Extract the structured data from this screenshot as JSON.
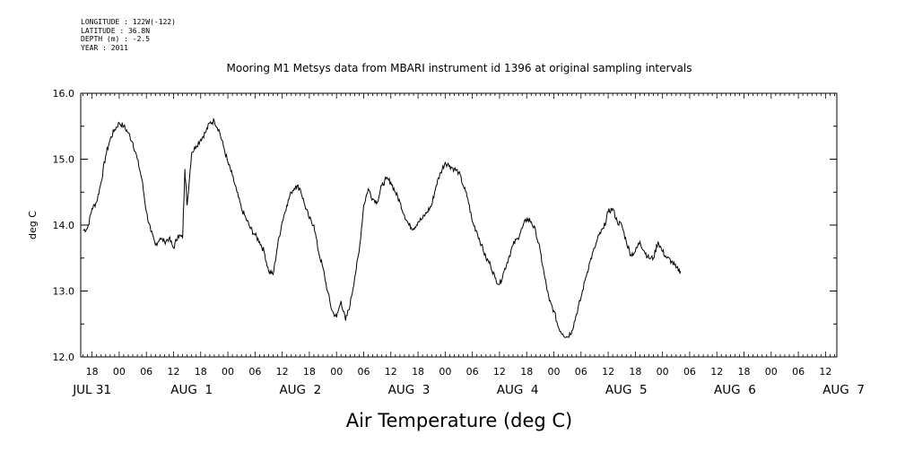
{
  "metadata": {
    "longitude": "LONGITUDE : 122W(-122)",
    "latitude": "LATITUDE : 36.8N",
    "depth": "DEPTH (m) : -2.5",
    "year": "YEAR : 2011"
  },
  "chart_data": {
    "type": "line",
    "title": "Mooring M1 Metsys data from MBARI instrument id 1396 at original sampling intervals",
    "xlabel": "Air Temperature (deg C)",
    "ylabel": "deg C",
    "ylim": [
      12.0,
      16.0
    ],
    "yticks": [
      "16.0",
      "15.0",
      "14.0",
      "13.0",
      "12.0"
    ],
    "x_units": "hours since 2011-07-31 00:00",
    "xlim": [
      15.5,
      182.5
    ],
    "hour_ticks": [
      {
        "h": 18,
        "label": "18"
      },
      {
        "h": 24,
        "label": "00"
      },
      {
        "h": 30,
        "label": "06"
      },
      {
        "h": 36,
        "label": "12"
      },
      {
        "h": 42,
        "label": "18"
      },
      {
        "h": 48,
        "label": "00"
      },
      {
        "h": 54,
        "label": "06"
      },
      {
        "h": 60,
        "label": "12"
      },
      {
        "h": 66,
        "label": "18"
      },
      {
        "h": 72,
        "label": "00"
      },
      {
        "h": 78,
        "label": "06"
      },
      {
        "h": 84,
        "label": "12"
      },
      {
        "h": 90,
        "label": "18"
      },
      {
        "h": 96,
        "label": "00"
      },
      {
        "h": 102,
        "label": "06"
      },
      {
        "h": 108,
        "label": "12"
      },
      {
        "h": 114,
        "label": "18"
      },
      {
        "h": 120,
        "label": "00"
      },
      {
        "h": 126,
        "label": "06"
      },
      {
        "h": 132,
        "label": "12"
      },
      {
        "h": 138,
        "label": "18"
      },
      {
        "h": 144,
        "label": "00"
      },
      {
        "h": 150,
        "label": "06"
      },
      {
        "h": 156,
        "label": "12"
      },
      {
        "h": 162,
        "label": "18"
      },
      {
        "h": 168,
        "label": "00"
      },
      {
        "h": 174,
        "label": "06"
      },
      {
        "h": 180,
        "label": "12"
      }
    ],
    "date_labels": [
      {
        "h": 18,
        "label": "JUL 31"
      },
      {
        "h": 40,
        "label": "AUG  1"
      },
      {
        "h": 64,
        "label": "AUG  2"
      },
      {
        "h": 88,
        "label": "AUG  3"
      },
      {
        "h": 112,
        "label": "AUG  4"
      },
      {
        "h": 136,
        "label": "AUG  5"
      },
      {
        "h": 160,
        "label": "AUG  6"
      },
      {
        "h": 184,
        "label": "AUG  7"
      }
    ],
    "series": [
      {
        "color": "#000000",
        "points": [
          [
            16.0,
            13.92
          ],
          [
            17.0,
            13.95
          ],
          [
            18.0,
            14.25
          ],
          [
            19.0,
            14.35
          ],
          [
            20.0,
            14.65
          ],
          [
            21.0,
            15.05
          ],
          [
            22.0,
            15.3
          ],
          [
            23.0,
            15.45
          ],
          [
            24.0,
            15.55
          ],
          [
            25.0,
            15.5
          ],
          [
            26.0,
            15.4
          ],
          [
            27.0,
            15.25
          ],
          [
            28.0,
            15.0
          ],
          [
            29.0,
            14.7
          ],
          [
            30.0,
            14.2
          ],
          [
            31.0,
            13.9
          ],
          [
            32.0,
            13.7
          ],
          [
            33.0,
            13.8
          ],
          [
            34.0,
            13.75
          ],
          [
            35.0,
            13.8
          ],
          [
            36.0,
            13.65
          ],
          [
            37.0,
            13.85
          ],
          [
            38.0,
            13.8
          ],
          [
            38.5,
            14.85
          ],
          [
            39.0,
            14.3
          ],
          [
            40.0,
            15.1
          ],
          [
            41.0,
            15.2
          ],
          [
            42.0,
            15.3
          ],
          [
            43.0,
            15.4
          ],
          [
            44.0,
            15.55
          ],
          [
            45.0,
            15.58
          ],
          [
            46.0,
            15.45
          ],
          [
            47.0,
            15.2
          ],
          [
            48.0,
            14.95
          ],
          [
            49.0,
            14.75
          ],
          [
            50.0,
            14.5
          ],
          [
            51.0,
            14.25
          ],
          [
            52.0,
            14.1
          ],
          [
            53.0,
            13.95
          ],
          [
            54.0,
            13.85
          ],
          [
            55.0,
            13.75
          ],
          [
            56.0,
            13.6
          ],
          [
            57.0,
            13.3
          ],
          [
            58.0,
            13.25
          ],
          [
            59.0,
            13.7
          ],
          [
            60.0,
            14.05
          ],
          [
            61.0,
            14.3
          ],
          [
            62.0,
            14.5
          ],
          [
            63.0,
            14.6
          ],
          [
            64.0,
            14.55
          ],
          [
            65.0,
            14.3
          ],
          [
            66.0,
            14.1
          ],
          [
            67.0,
            14.0
          ],
          [
            68.0,
            13.6
          ],
          [
            69.0,
            13.35
          ],
          [
            70.0,
            13.0
          ],
          [
            71.0,
            12.7
          ],
          [
            72.0,
            12.6
          ],
          [
            73.0,
            12.85
          ],
          [
            74.0,
            12.55
          ],
          [
            75.0,
            12.8
          ],
          [
            76.0,
            13.2
          ],
          [
            77.0,
            13.6
          ],
          [
            78.0,
            14.3
          ],
          [
            79.0,
            14.55
          ],
          [
            80.0,
            14.4
          ],
          [
            81.0,
            14.35
          ],
          [
            82.0,
            14.6
          ],
          [
            83.0,
            14.7
          ],
          [
            84.0,
            14.65
          ],
          [
            85.0,
            14.5
          ],
          [
            86.0,
            14.35
          ],
          [
            87.0,
            14.15
          ],
          [
            88.0,
            14.0
          ],
          [
            89.0,
            13.95
          ],
          [
            90.0,
            14.05
          ],
          [
            91.0,
            14.1
          ],
          [
            92.0,
            14.2
          ],
          [
            93.0,
            14.3
          ],
          [
            94.0,
            14.6
          ],
          [
            95.0,
            14.8
          ],
          [
            96.0,
            14.95
          ],
          [
            97.0,
            14.9
          ],
          [
            98.0,
            14.85
          ],
          [
            99.0,
            14.8
          ],
          [
            100.0,
            14.6
          ],
          [
            101.0,
            14.4
          ],
          [
            102.0,
            14.05
          ],
          [
            103.0,
            13.9
          ],
          [
            104.0,
            13.7
          ],
          [
            105.0,
            13.5
          ],
          [
            106.0,
            13.4
          ],
          [
            107.0,
            13.2
          ],
          [
            108.0,
            13.1
          ],
          [
            109.0,
            13.3
          ],
          [
            110.0,
            13.5
          ],
          [
            111.0,
            13.7
          ],
          [
            112.0,
            13.8
          ],
          [
            113.0,
            13.95
          ],
          [
            114.0,
            14.1
          ],
          [
            115.0,
            14.05
          ],
          [
            116.0,
            13.9
          ],
          [
            117.0,
            13.6
          ],
          [
            118.0,
            13.2
          ],
          [
            119.0,
            12.85
          ],
          [
            120.0,
            12.7
          ],
          [
            121.0,
            12.45
          ],
          [
            122.0,
            12.35
          ],
          [
            123.0,
            12.3
          ],
          [
            124.0,
            12.4
          ],
          [
            125.0,
            12.65
          ],
          [
            126.0,
            12.9
          ],
          [
            127.0,
            13.2
          ],
          [
            128.0,
            13.45
          ],
          [
            129.0,
            13.65
          ],
          [
            130.0,
            13.85
          ],
          [
            131.0,
            13.95
          ],
          [
            132.0,
            14.2
          ],
          [
            133.0,
            14.25
          ],
          [
            134.0,
            14.05
          ],
          [
            135.0,
            14.0
          ],
          [
            136.0,
            13.75
          ],
          [
            137.0,
            13.55
          ],
          [
            138.0,
            13.6
          ],
          [
            139.0,
            13.75
          ],
          [
            140.0,
            13.6
          ],
          [
            141.0,
            13.5
          ],
          [
            142.0,
            13.5
          ],
          [
            143.0,
            13.75
          ],
          [
            144.0,
            13.6
          ],
          [
            145.0,
            13.5
          ],
          [
            146.0,
            13.45
          ],
          [
            147.0,
            13.35
          ],
          [
            148.0,
            13.3
          ]
        ]
      }
    ]
  }
}
